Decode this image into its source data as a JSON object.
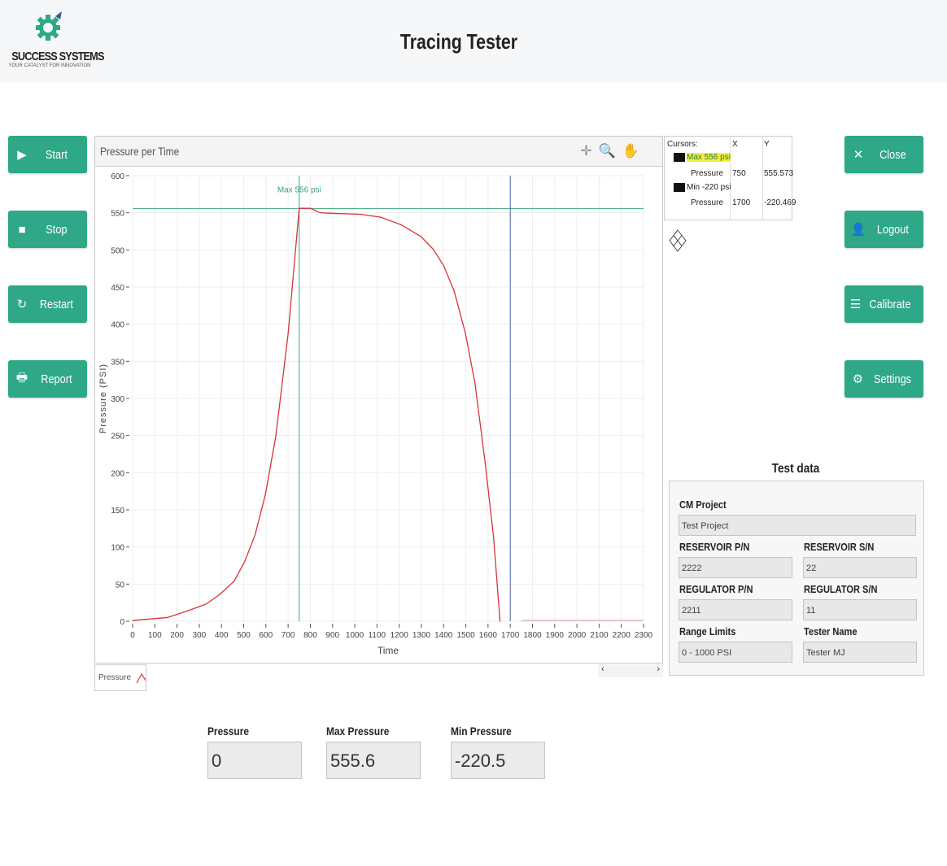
{
  "app": {
    "logo_name": "SUCCESS SYSTEMS",
    "logo_tagline": "YOUR CATALYST FOR INNOVATION",
    "title": "Tracing Tester"
  },
  "left_buttons": [
    {
      "label": "Start",
      "icon": "play-icon"
    },
    {
      "label": "Stop",
      "icon": "stop-icon"
    },
    {
      "label": "Restart",
      "icon": "refresh-icon"
    },
    {
      "label": "Report",
      "icon": "print-icon"
    }
  ],
  "right_buttons": [
    {
      "label": "Close",
      "icon": "close-icon"
    },
    {
      "label": "Logout",
      "icon": "user-icon"
    },
    {
      "label": "Calibrate",
      "icon": "sliders-icon"
    },
    {
      "label": "Settings",
      "icon": "gear-icon"
    }
  ],
  "colors": {
    "accent": "#2ea886",
    "series": "#d8323a",
    "max_cursor": "#3aa57a",
    "min_cursor": "#4a64a8"
  },
  "cursors": {
    "header": "Cursors:",
    "col_x": "X",
    "col_y": "Y",
    "items": [
      {
        "name": "Max 556 psi",
        "plot": "Pressure",
        "x": "750",
        "y": "555.573"
      },
      {
        "name": "Min -220 psi",
        "plot": "Pressure",
        "x": "1700",
        "y": "-220.469"
      }
    ]
  },
  "chart_data": {
    "type": "line",
    "title": "Pressure per Time",
    "xlabel": "Time",
    "ylabel": "Pressure (PSI)",
    "xlim": [
      0,
      2300
    ],
    "ylim": [
      0,
      600
    ],
    "grid": true,
    "legend": "bottom-left",
    "xticks": [
      0,
      100,
      200,
      300,
      400,
      500,
      600,
      700,
      800,
      900,
      1000,
      1100,
      1200,
      1300,
      1400,
      1500,
      1600,
      1700,
      1800,
      1900,
      2000,
      2100,
      2200,
      2300
    ],
    "yticks": [
      0,
      50,
      100,
      150,
      200,
      250,
      300,
      350,
      400,
      450,
      500,
      550,
      600
    ],
    "series": [
      {
        "name": "Pressure",
        "x": [
          0,
          156,
          247,
          330,
          392,
          457,
          504,
          551,
          598,
          645,
          700,
          750,
          800,
          845,
          918,
          1026,
          1117,
          1208,
          1298,
          1353,
          1400,
          1447,
          1498,
          1541,
          1588,
          1625,
          1654,
          1700
        ],
        "y": [
          1,
          5,
          14,
          23,
          36,
          54,
          80,
          116,
          171,
          250,
          387,
          556,
          556,
          550,
          549,
          548,
          544,
          534,
          518,
          501,
          479,
          445,
          388,
          321,
          211,
          113,
          0,
          -220.5
        ]
      }
    ],
    "trail": {
      "x": [
        1750,
        2300
      ],
      "y": [
        0,
        0
      ]
    },
    "cursor_annotation": "Max 556 psi",
    "max_cursor": {
      "x": 750,
      "y": 555.573
    },
    "min_cursor": {
      "x": 1700,
      "y": -220.469
    }
  },
  "legend_label": "Pressure",
  "scroll": {
    "left": "‹",
    "right": "›"
  },
  "test_data": {
    "title": "Test data",
    "cm_project": {
      "label": "CM Project",
      "value": "Test Project"
    },
    "reservoir_pn": {
      "label": "RESERVOIR P/N",
      "value": "2222"
    },
    "reservoir_sn": {
      "label": "RESERVOIR S/N",
      "value": "22"
    },
    "regulator_pn": {
      "label": "REGULATOR P/N",
      "value": "2211"
    },
    "regulator_sn": {
      "label": "REGULATOR S/N",
      "value": "11"
    },
    "range_limits": {
      "label": "Range Limits",
      "value": "0 - 1000 PSI"
    },
    "tester_name": {
      "label": "Tester Name",
      "value": "Tester MJ"
    }
  },
  "readouts": [
    {
      "label": "Pressure",
      "value": "0"
    },
    {
      "label": "Max Pressure",
      "value": "555.6"
    },
    {
      "label": "Min Pressure",
      "value": "-220.5"
    }
  ]
}
